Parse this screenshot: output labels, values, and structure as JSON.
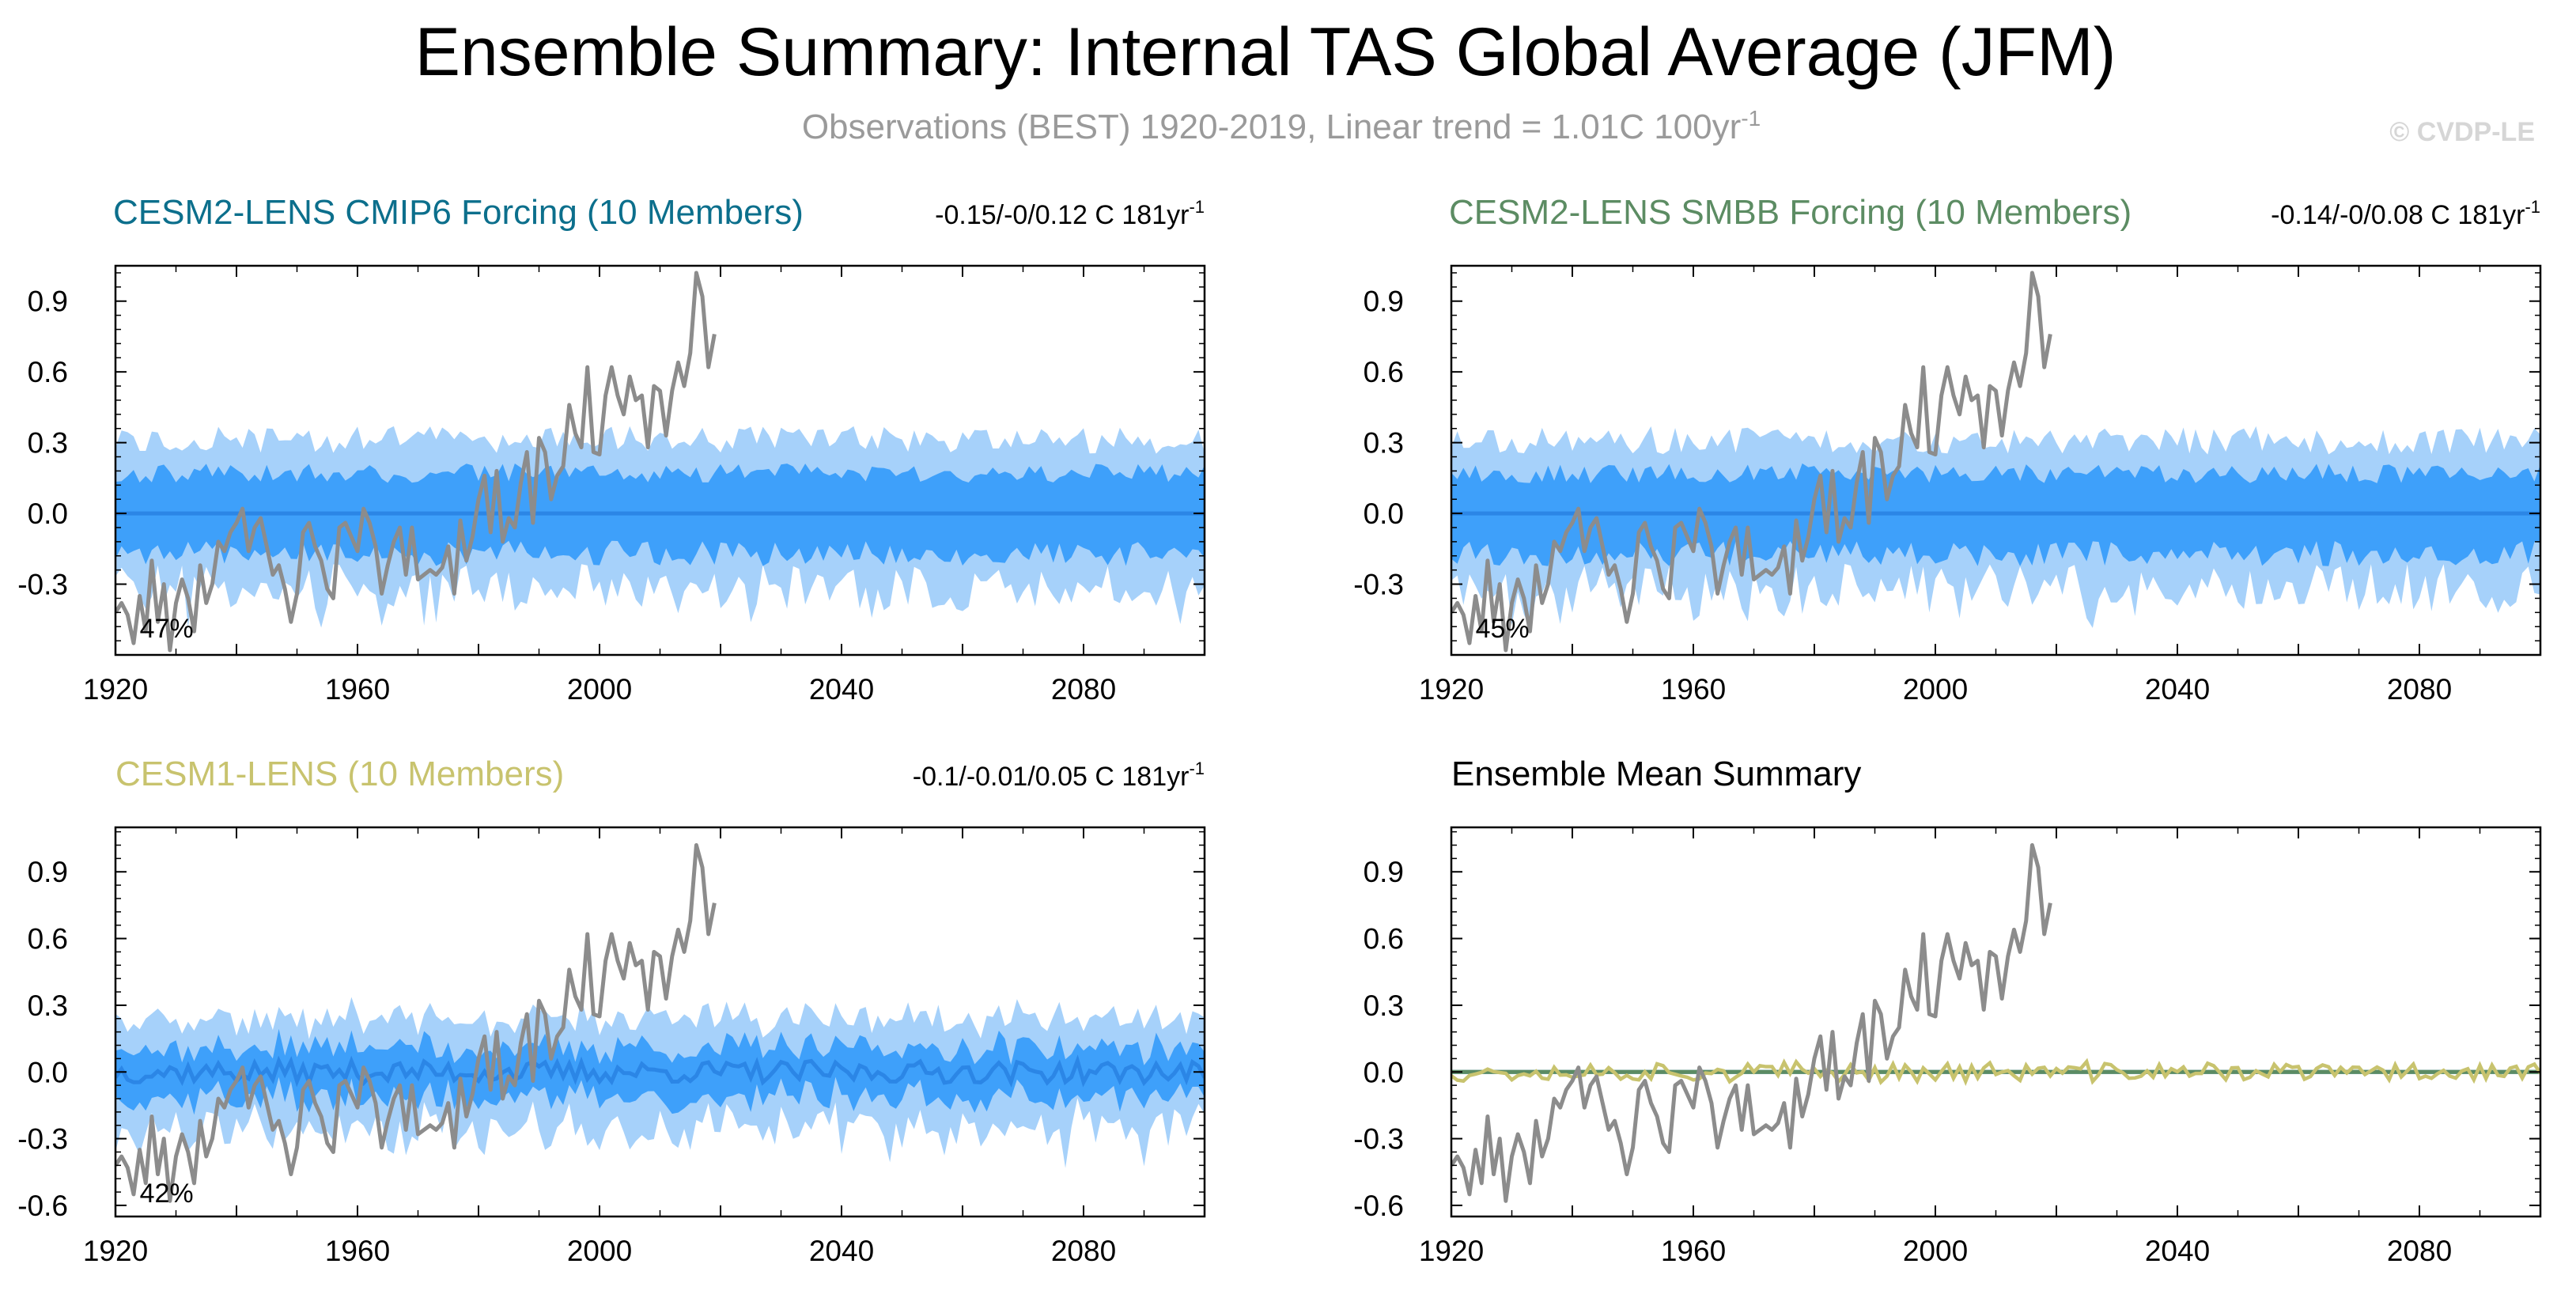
{
  "title": "Ensemble Summary: Internal TAS Global Average (JFM)",
  "subtitle": {
    "text": "Observations (BEST) 1920-2019, Linear trend = 1.01C 100yr",
    "sup": "-1"
  },
  "watermark": "© CVDP-LE",
  "colors": {
    "outer_band": "#a6d1fa",
    "inner_band": "#3ea0fa",
    "ens_mean": "#2b86e6",
    "obs": "#8c8c8c",
    "cesm2_cmip6": "#0c6f8c",
    "cesm2_smbb": "#5c8c63",
    "cesm1": "#c8c36e"
  },
  "chart_data": [
    {
      "id": "cesm2-cmip6",
      "type": "area",
      "title": "CESM2-LENS CMIP6 Forcing (10 Members)",
      "title_color": "#0c6f8c",
      "trend_text": "-0.15/-0/0.12 C 181yr",
      "trend_sup": "-1",
      "percent_label": "47%",
      "xlim": [
        1920,
        2100
      ],
      "ylim": [
        -0.6,
        1.05
      ],
      "xticks": [
        1920,
        1960,
        2000,
        2040,
        2080
      ],
      "yticks": [
        0.9,
        0.6,
        0.3,
        0.0,
        -0.3
      ],
      "ytick_labels": [
        "0.9",
        "0.6",
        "0.3",
        "0.0",
        "-0.3"
      ],
      "ensemble_mean": 0.0,
      "outer_half_width": 0.31,
      "inner_half_width": 0.17,
      "noise": 0.06,
      "seed": 11
    },
    {
      "id": "cesm2-smbb",
      "type": "area",
      "title": "CESM2-LENS SMBB Forcing (10 Members)",
      "title_color": "#5c8c63",
      "trend_text": "-0.14/-0/0.08 C 181yr",
      "trend_sup": "-1",
      "percent_label": "45%",
      "xlim": [
        1920,
        2100
      ],
      "ylim": [
        -0.6,
        1.05
      ],
      "xticks": [
        1920,
        1960,
        2000,
        2040,
        2080
      ],
      "yticks": [
        0.9,
        0.6,
        0.3,
        0.0,
        -0.3
      ],
      "ytick_labels": [
        "0.9",
        "0.6",
        "0.3",
        "0.0",
        "-0.3"
      ],
      "ensemble_mean": 0.0,
      "outer_half_width": 0.31,
      "inner_half_width": 0.17,
      "noise": 0.06,
      "seed": 23
    },
    {
      "id": "cesm1",
      "type": "area",
      "title": "CESM1-LENS (10 Members)",
      "title_color": "#c8c36e",
      "trend_text": "-0.1/-0.01/0.05 C 181yr",
      "trend_sup": "-1",
      "percent_label": "42%",
      "xlim": [
        1920,
        2100
      ],
      "ylim": [
        -0.65,
        1.1
      ],
      "xticks": [
        1920,
        1960,
        2000,
        2040,
        2080
      ],
      "yticks": [
        0.9,
        0.6,
        0.3,
        0.0,
        -0.3,
        -0.6
      ],
      "ytick_labels": [
        "0.9",
        "0.6",
        "0.3",
        "0.0",
        "-0.3",
        "-0.6"
      ],
      "ensemble_mean": 0.0,
      "mean_wiggle": 0.05,
      "outer_half_width": 0.24,
      "inner_half_width": 0.11,
      "noise": 0.05,
      "seed": 37
    },
    {
      "id": "ens-mean-summary",
      "type": "line",
      "title": "Ensemble Mean Summary",
      "title_color": "#000000",
      "xlim": [
        1920,
        2100
      ],
      "ylim": [
        -0.65,
        1.1
      ],
      "xticks": [
        1920,
        1960,
        2000,
        2040,
        2080
      ],
      "yticks": [
        0.9,
        0.6,
        0.3,
        0.0,
        -0.3,
        -0.6
      ],
      "ytick_labels": [
        "0.9",
        "0.6",
        "0.3",
        "0.0",
        "-0.3",
        "-0.6"
      ],
      "series": [
        {
          "name": "CESM2-LENS CMIP6 Forcing",
          "color": "#0c6f8c",
          "constant": 0.0
        },
        {
          "name": "CESM2-LENS SMBB Forcing",
          "color": "#5c8c63",
          "constant": 0.0
        },
        {
          "name": "CESM1-LENS",
          "color": "#c8c36e",
          "noise": 0.04,
          "seed": 37
        }
      ]
    }
  ],
  "observations": {
    "name": "Observations (BEST)",
    "years": [
      1920,
      1921,
      1922,
      1923,
      1924,
      1925,
      1926,
      1927,
      1928,
      1929,
      1930,
      1931,
      1932,
      1933,
      1934,
      1935,
      1936,
      1937,
      1938,
      1939,
      1940,
      1941,
      1942,
      1943,
      1944,
      1945,
      1946,
      1947,
      1948,
      1949,
      1950,
      1951,
      1952,
      1953,
      1954,
      1955,
      1956,
      1957,
      1958,
      1959,
      1960,
      1961,
      1962,
      1963,
      1964,
      1965,
      1966,
      1967,
      1968,
      1969,
      1970,
      1971,
      1972,
      1973,
      1974,
      1975,
      1976,
      1977,
      1978,
      1979,
      1980,
      1981,
      1982,
      1983,
      1984,
      1985,
      1986,
      1987,
      1988,
      1989,
      1990,
      1991,
      1992,
      1993,
      1994,
      1995,
      1996,
      1997,
      1998,
      1999,
      2000,
      2001,
      2002,
      2003,
      2004,
      2005,
      2006,
      2007,
      2008,
      2009,
      2010,
      2011,
      2012,
      2013,
      2014,
      2015,
      2016,
      2017,
      2018,
      2019
    ],
    "values": [
      -0.42,
      -0.38,
      -0.43,
      -0.55,
      -0.35,
      -0.5,
      -0.2,
      -0.46,
      -0.3,
      -0.58,
      -0.38,
      -0.28,
      -0.36,
      -0.5,
      -0.22,
      -0.38,
      -0.3,
      -0.12,
      -0.16,
      -0.08,
      -0.04,
      0.02,
      -0.16,
      -0.06,
      -0.02,
      -0.14,
      -0.26,
      -0.22,
      -0.32,
      -0.46,
      -0.34,
      -0.08,
      -0.04,
      -0.14,
      -0.2,
      -0.32,
      -0.36,
      -0.06,
      -0.04,
      -0.1,
      -0.16,
      0.02,
      -0.04,
      -0.14,
      -0.34,
      -0.22,
      -0.12,
      -0.06,
      -0.26,
      -0.06,
      -0.28,
      -0.26,
      -0.24,
      -0.26,
      -0.23,
      -0.14,
      -0.34,
      -0.03,
      -0.2,
      -0.1,
      0.06,
      0.16,
      -0.08,
      0.18,
      -0.12,
      -0.02,
      -0.06,
      0.13,
      0.26,
      -0.04,
      0.32,
      0.26,
      0.06,
      0.16,
      0.2,
      0.46,
      0.34,
      0.28,
      0.62,
      0.26,
      0.25,
      0.5,
      0.62,
      0.5,
      0.42,
      0.58,
      0.48,
      0.5,
      0.28,
      0.54,
      0.52,
      0.33,
      0.52,
      0.64,
      0.54,
      0.68,
      1.02,
      0.92,
      0.62,
      0.76
    ]
  }
}
